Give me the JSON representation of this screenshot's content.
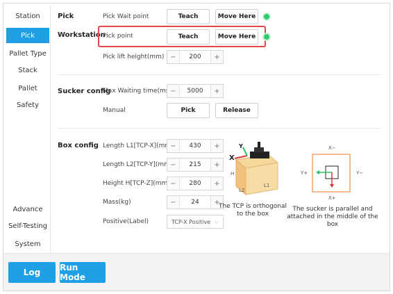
{
  "sidebar": {
    "items": [
      {
        "label": "Station",
        "active": false
      },
      {
        "label": "Pick",
        "active": true
      },
      {
        "label": "Pallet Type",
        "active": false
      },
      {
        "label": "Stack",
        "active": false
      },
      {
        "label": "Pallet",
        "active": false
      },
      {
        "label": "Safety",
        "active": false
      },
      {
        "label": "Advance",
        "active": false
      },
      {
        "label": "Self-Testing",
        "active": false
      },
      {
        "label": "System",
        "active": false
      }
    ]
  },
  "pick": {
    "section_label": "Pick",
    "workstation_label": "Workstation",
    "wait_point": {
      "label": "Pick Wait point",
      "teach": "Teach",
      "move": "Move Here"
    },
    "pick_point": {
      "label": "Pick point",
      "teach": "Teach",
      "move": "Move Here"
    },
    "lift_height": {
      "label": "Pick lift height(mm)",
      "value": "200"
    }
  },
  "sucker": {
    "section_label": "Sucker config",
    "max_wait": {
      "label": "Max Waiting time(ms)",
      "value": "5000"
    },
    "manual": {
      "label": "Manual",
      "pick": "Pick",
      "release": "Release"
    }
  },
  "box": {
    "section_label": "Box config",
    "length_l1": {
      "label": "Length L1[TCP-X](mm)",
      "value": "430"
    },
    "length_l2": {
      "label": "Length L2[TCP-Y](mm)",
      "value": "215"
    },
    "height_h": {
      "label": "Height H[TCP-Z](mm)",
      "value": "280"
    },
    "mass": {
      "label": "Mass(kg)",
      "value": "24"
    },
    "positive": {
      "label": "Positive(Label)",
      "value": "TCP-X Positive"
    },
    "box_figure": {
      "y": "Y",
      "x": "X",
      "h": "H",
      "l2": "L2",
      "l1": "L1"
    },
    "tcp_caption": "The TCP is orthogonal to the box",
    "top_figure": {
      "x_minus": "X−",
      "x_plus": "X+",
      "y_plus": "Y+",
      "y_minus": "Y−"
    },
    "sucker_caption": "The sucker is parallel and attached in the middle of the box"
  },
  "stepper": {
    "minus": "−",
    "plus": "+"
  },
  "bottom": {
    "log": "Log",
    "run_mode": "Run Mode"
  },
  "colors": {
    "accent": "#1e9fe6",
    "highlight": "#e4474a",
    "status_dot": "#2ecc71"
  }
}
